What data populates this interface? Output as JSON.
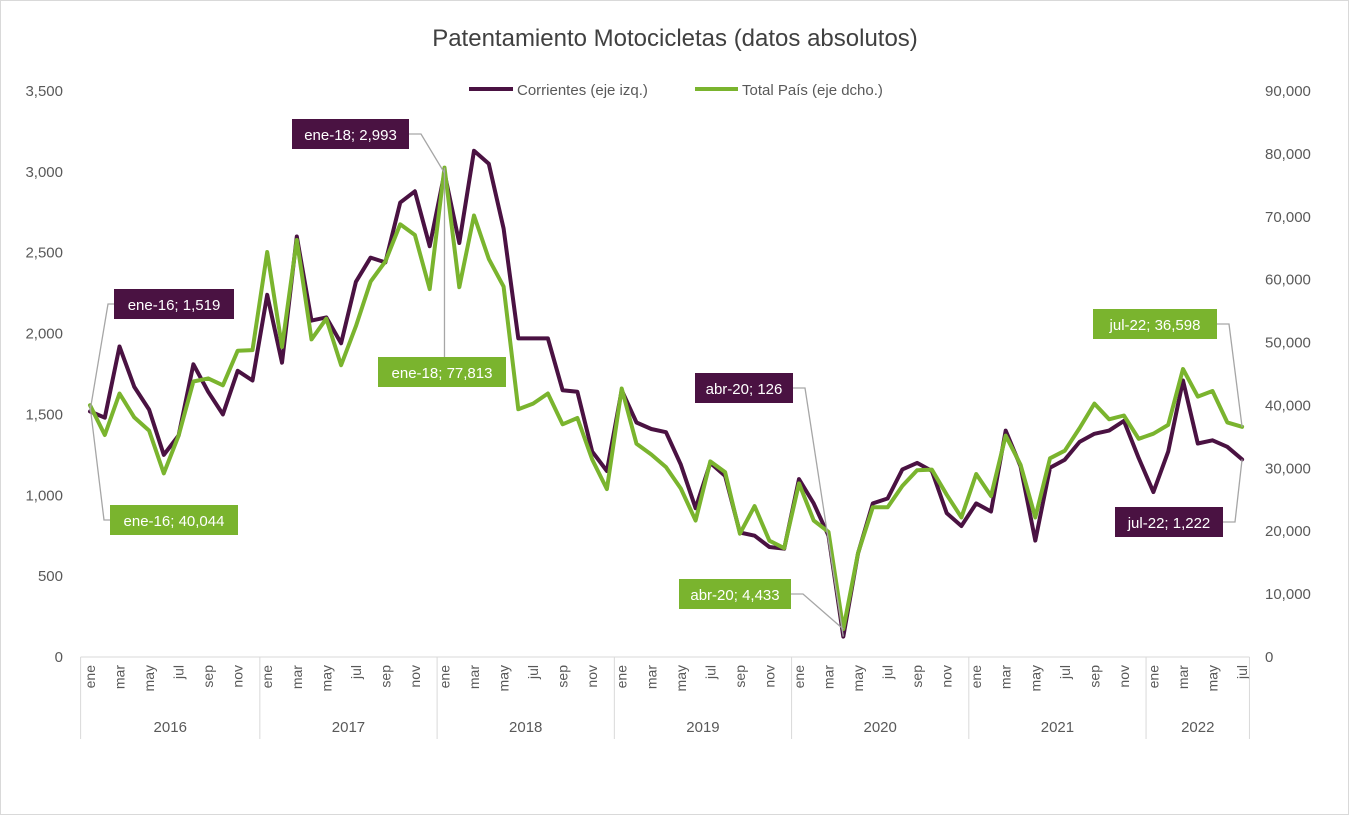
{
  "chart_data": {
    "type": "line",
    "title": "Patentamiento Motocicletas (datos absolutos)",
    "legend_position": "top",
    "grid": false,
    "colors": {
      "corrientes": "#4a1242",
      "total": "#7ab42e"
    },
    "y_left": {
      "min": 0,
      "max": 3500,
      "ticks": [
        "0",
        "500",
        "1,000",
        "1,500",
        "2,000",
        "2,500",
        "3,000",
        "3,500"
      ]
    },
    "y_right": {
      "min": 0,
      "max": 90000,
      "ticks": [
        "0",
        "10,000",
        "20,000",
        "30,000",
        "40,000",
        "50,000",
        "60,000",
        "70,000",
        "80,000",
        "90,000"
      ]
    },
    "month_labels": [
      "ene",
      "mar",
      "may",
      "jul",
      "sep",
      "nov"
    ],
    "year_labels": [
      "2016",
      "2017",
      "2018",
      "2019",
      "2020",
      "2021",
      "2022"
    ],
    "series": [
      {
        "name": "Corrientes (eje izq.)",
        "axis": "left",
        "values": [
          1519,
          1480,
          1920,
          1670,
          1530,
          1250,
          1370,
          1810,
          1640,
          1500,
          1770,
          1710,
          2240,
          1820,
          2600,
          2080,
          2100,
          1940,
          2320,
          2470,
          2440,
          2810,
          2880,
          2540,
          2993,
          2560,
          3130,
          3050,
          2650,
          1970,
          1970,
          1970,
          1650,
          1640,
          1270,
          1150,
          1650,
          1450,
          1410,
          1390,
          1190,
          920,
          1200,
          1120,
          770,
          750,
          680,
          670,
          1100,
          950,
          750,
          126,
          640,
          950,
          980,
          1160,
          1200,
          1150,
          890,
          810,
          950,
          900,
          1400,
          1180,
          720,
          1170,
          1220,
          1330,
          1380,
          1400,
          1460,
          1230,
          1020,
          1270,
          1710,
          1320,
          1340,
          1300,
          1222
        ]
      },
      {
        "name": "Total País (eje dcho.)",
        "axis": "right",
        "values": [
          40044,
          35300,
          41900,
          38100,
          36000,
          29200,
          35200,
          43800,
          44300,
          43200,
          48700,
          48800,
          64400,
          49300,
          66300,
          50500,
          53800,
          46400,
          52600,
          59700,
          62900,
          68800,
          67100,
          58500,
          77813,
          58800,
          70200,
          63300,
          58900,
          39400,
          40300,
          41900,
          37000,
          38000,
          31400,
          26700,
          42700,
          33900,
          32200,
          30200,
          26800,
          21700,
          31100,
          29400,
          19600,
          24000,
          18500,
          17300,
          27600,
          21700,
          19900,
          4433,
          16500,
          23800,
          23800,
          27200,
          29700,
          29800,
          25800,
          22200,
          29100,
          25600,
          35200,
          30600,
          22200,
          31600,
          32800,
          36400,
          40300,
          37800,
          38400,
          34700,
          35500,
          36900,
          45800,
          41400,
          42300,
          37300,
          36598
        ]
      }
    ],
    "annotations": [
      {
        "label": "ene-16; 1,519",
        "series": "Corrientes (eje izq.)",
        "index": 0
      },
      {
        "label": "ene-16; 40,044",
        "series": "Total País (eje dcho.)",
        "index": 0
      },
      {
        "label": "ene-18; 2,993",
        "series": "Corrientes (eje izq.)",
        "index": 24
      },
      {
        "label": "ene-18; 77,813",
        "series": "Total País (eje dcho.)",
        "index": 24
      },
      {
        "label": "abr-20; 126",
        "series": "Corrientes (eje izq.)",
        "index": 51
      },
      {
        "label": "abr-20; 4,433",
        "series": "Total País (eje dcho.)",
        "index": 51
      },
      {
        "label": "jul-22; 36,598",
        "series": "Total País (eje dcho.)",
        "index": 78
      },
      {
        "label": "jul-22; 1,222",
        "series": "Corrientes (eje izq.)",
        "index": 78
      }
    ]
  }
}
